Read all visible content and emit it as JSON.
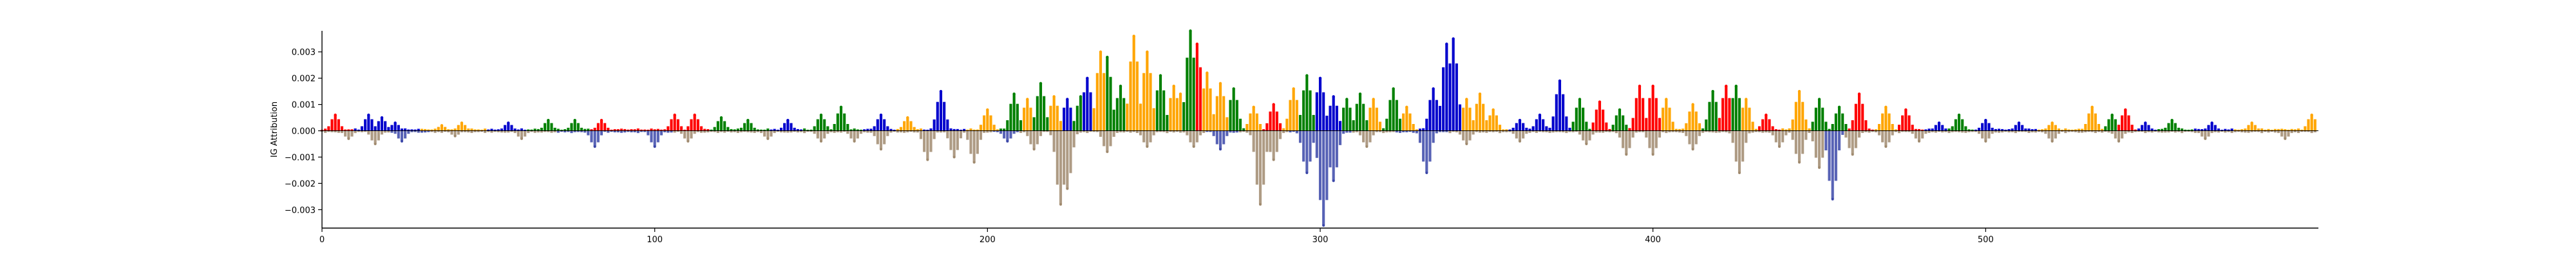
{
  "chart_data": {
    "type": "bar",
    "xlabel": "",
    "ylabel": "IG Attribution",
    "xlim": [
      0,
      600
    ],
    "ylim": [
      -0.0037,
      0.0038
    ],
    "x_ticks": [
      0,
      100,
      200,
      300,
      400,
      500
    ],
    "x_tick_labels": [
      "0",
      "100",
      "200",
      "300",
      "400",
      "500"
    ],
    "y_ticks": [
      0.003,
      0.002,
      0.001,
      0.0,
      -0.001,
      -0.002,
      -0.003
    ],
    "y_tick_labels": [
      "0.003",
      "0.002",
      "0.001",
      "0.000",
      "−0.001",
      "−0.002",
      "−0.003"
    ],
    "grid": false,
    "nucleotide_colors": {
      "A": "#008000",
      "C": "#0000cc",
      "G": "#ffa500",
      "T": "#ff0000"
    },
    "negative_bar_color": "#a08a6e",
    "positive_peaks": [
      {
        "x": 4,
        "y": 0.0006,
        "base": "T"
      },
      {
        "x": 14,
        "y": 0.0006,
        "base": "C"
      },
      {
        "x": 18,
        "y": 0.0005,
        "base": "C"
      },
      {
        "x": 22,
        "y": 0.0003,
        "base": "C"
      },
      {
        "x": 36,
        "y": 0.0002,
        "base": "G"
      },
      {
        "x": 42,
        "y": 0.0003,
        "base": "G"
      },
      {
        "x": 56,
        "y": 0.0003,
        "base": "C"
      },
      {
        "x": 68,
        "y": 0.0004,
        "base": "A"
      },
      {
        "x": 76,
        "y": 0.0004,
        "base": "A"
      },
      {
        "x": 84,
        "y": 0.0004,
        "base": "T"
      },
      {
        "x": 106,
        "y": 0.0006,
        "base": "T"
      },
      {
        "x": 112,
        "y": 0.0006,
        "base": "T"
      },
      {
        "x": 120,
        "y": 0.0005,
        "base": "A"
      },
      {
        "x": 128,
        "y": 0.0004,
        "base": "A"
      },
      {
        "x": 140,
        "y": 0.0004,
        "base": "C"
      },
      {
        "x": 150,
        "y": 0.0006,
        "base": "A"
      },
      {
        "x": 156,
        "y": 0.0009,
        "base": "A"
      },
      {
        "x": 168,
        "y": 0.0006,
        "base": "C"
      },
      {
        "x": 176,
        "y": 0.0005,
        "base": "G"
      },
      {
        "x": 186,
        "y": 0.0015,
        "base": "C"
      },
      {
        "x": 200,
        "y": 0.0008,
        "base": "G"
      },
      {
        "x": 208,
        "y": 0.0014,
        "base": "A"
      },
      {
        "x": 212,
        "y": 0.0012,
        "base": "G"
      },
      {
        "x": 216,
        "y": 0.0018,
        "base": "A"
      },
      {
        "x": 220,
        "y": 0.0013,
        "base": "G"
      },
      {
        "x": 224,
        "y": 0.0012,
        "base": "C"
      },
      {
        "x": 228,
        "y": 0.0013,
        "base": "A"
      },
      {
        "x": 230,
        "y": 0.002,
        "base": "C"
      },
      {
        "x": 234,
        "y": 0.003,
        "base": "G"
      },
      {
        "x": 236,
        "y": 0.0028,
        "base": "A"
      },
      {
        "x": 240,
        "y": 0.0017,
        "base": "A"
      },
      {
        "x": 244,
        "y": 0.0036,
        "base": "G"
      },
      {
        "x": 248,
        "y": 0.003,
        "base": "G"
      },
      {
        "x": 252,
        "y": 0.0021,
        "base": "A"
      },
      {
        "x": 256,
        "y": 0.0017,
        "base": "G"
      },
      {
        "x": 258,
        "y": 0.0014,
        "base": "G"
      },
      {
        "x": 261,
        "y": 0.0038,
        "base": "A"
      },
      {
        "x": 263,
        "y": 0.0033,
        "base": "T"
      },
      {
        "x": 266,
        "y": 0.0022,
        "base": "G"
      },
      {
        "x": 270,
        "y": 0.0018,
        "base": "G"
      },
      {
        "x": 274,
        "y": 0.0016,
        "base": "A"
      },
      {
        "x": 280,
        "y": 0.0009,
        "base": "G"
      },
      {
        "x": 286,
        "y": 0.001,
        "base": "T"
      },
      {
        "x": 292,
        "y": 0.0016,
        "base": "G"
      },
      {
        "x": 296,
        "y": 0.0021,
        "base": "A"
      },
      {
        "x": 300,
        "y": 0.002,
        "base": "C"
      },
      {
        "x": 304,
        "y": 0.0013,
        "base": "C"
      },
      {
        "x": 308,
        "y": 0.0012,
        "base": "A"
      },
      {
        "x": 312,
        "y": 0.0014,
        "base": "A"
      },
      {
        "x": 316,
        "y": 0.0012,
        "base": "G"
      },
      {
        "x": 322,
        "y": 0.0016,
        "base": "A"
      },
      {
        "x": 326,
        "y": 0.0009,
        "base": "G"
      },
      {
        "x": 334,
        "y": 0.0016,
        "base": "C"
      },
      {
        "x": 338,
        "y": 0.0033,
        "base": "C"
      },
      {
        "x": 340,
        "y": 0.0035,
        "base": "C"
      },
      {
        "x": 344,
        "y": 0.0012,
        "base": "G"
      },
      {
        "x": 348,
        "y": 0.0014,
        "base": "G"
      },
      {
        "x": 352,
        "y": 0.0008,
        "base": "G"
      },
      {
        "x": 360,
        "y": 0.0004,
        "base": "C"
      },
      {
        "x": 366,
        "y": 0.0006,
        "base": "C"
      },
      {
        "x": 372,
        "y": 0.0019,
        "base": "C"
      },
      {
        "x": 378,
        "y": 0.0012,
        "base": "A"
      },
      {
        "x": 384,
        "y": 0.0011,
        "base": "T"
      },
      {
        "x": 390,
        "y": 0.0008,
        "base": "A"
      },
      {
        "x": 396,
        "y": 0.0017,
        "base": "T"
      },
      {
        "x": 400,
        "y": 0.0017,
        "base": "T"
      },
      {
        "x": 404,
        "y": 0.0012,
        "base": "G"
      },
      {
        "x": 412,
        "y": 0.001,
        "base": "G"
      },
      {
        "x": 418,
        "y": 0.0015,
        "base": "A"
      },
      {
        "x": 422,
        "y": 0.0017,
        "base": "T"
      },
      {
        "x": 425,
        "y": 0.0017,
        "base": "A"
      },
      {
        "x": 428,
        "y": 0.0012,
        "base": "G"
      },
      {
        "x": 434,
        "y": 0.0006,
        "base": "T"
      },
      {
        "x": 444,
        "y": 0.0015,
        "base": "G"
      },
      {
        "x": 450,
        "y": 0.0012,
        "base": "A"
      },
      {
        "x": 456,
        "y": 0.0009,
        "base": "A"
      },
      {
        "x": 462,
        "y": 0.0014,
        "base": "T"
      },
      {
        "x": 470,
        "y": 0.0009,
        "base": "G"
      },
      {
        "x": 476,
        "y": 0.0008,
        "base": "T"
      },
      {
        "x": 486,
        "y": 0.0003,
        "base": "C"
      },
      {
        "x": 492,
        "y": 0.0006,
        "base": "A"
      },
      {
        "x": 500,
        "y": 0.0004,
        "base": "C"
      },
      {
        "x": 510,
        "y": 0.0003,
        "base": "C"
      },
      {
        "x": 520,
        "y": 0.0003,
        "base": "G"
      },
      {
        "x": 532,
        "y": 0.0009,
        "base": "G"
      },
      {
        "x": 538,
        "y": 0.0006,
        "base": "A"
      },
      {
        "x": 542,
        "y": 0.0008,
        "base": "T"
      },
      {
        "x": 548,
        "y": 0.0003,
        "base": "C"
      },
      {
        "x": 556,
        "y": 0.0004,
        "base": "A"
      },
      {
        "x": 568,
        "y": 0.0003,
        "base": "C"
      },
      {
        "x": 580,
        "y": 0.0003,
        "base": "G"
      },
      {
        "x": 598,
        "y": 0.0006,
        "base": "G"
      }
    ],
    "negative_peaks": [
      {
        "x": 8,
        "y": -0.0003,
        "base": "G"
      },
      {
        "x": 16,
        "y": -0.0005,
        "base": "G"
      },
      {
        "x": 24,
        "y": -0.0004,
        "base": "C"
      },
      {
        "x": 40,
        "y": -0.0002,
        "base": "G"
      },
      {
        "x": 60,
        "y": -0.0003,
        "base": "G"
      },
      {
        "x": 82,
        "y": -0.0006,
        "base": "C"
      },
      {
        "x": 100,
        "y": -0.0006,
        "base": "C"
      },
      {
        "x": 110,
        "y": -0.0004,
        "base": "G"
      },
      {
        "x": 134,
        "y": -0.0003,
        "base": "G"
      },
      {
        "x": 150,
        "y": -0.0004,
        "base": "G"
      },
      {
        "x": 160,
        "y": -0.0004,
        "base": "G"
      },
      {
        "x": 168,
        "y": -0.0007,
        "base": "G"
      },
      {
        "x": 182,
        "y": -0.0011,
        "base": "G"
      },
      {
        "x": 190,
        "y": -0.001,
        "base": "G"
      },
      {
        "x": 196,
        "y": -0.0012,
        "base": "G"
      },
      {
        "x": 206,
        "y": -0.0004,
        "base": "C"
      },
      {
        "x": 214,
        "y": -0.0007,
        "base": "G"
      },
      {
        "x": 222,
        "y": -0.0028,
        "base": "G"
      },
      {
        "x": 224,
        "y": -0.0022,
        "base": "G"
      },
      {
        "x": 236,
        "y": -0.0008,
        "base": "G"
      },
      {
        "x": 248,
        "y": -0.0006,
        "base": "G"
      },
      {
        "x": 262,
        "y": -0.0006,
        "base": "G"
      },
      {
        "x": 270,
        "y": -0.0007,
        "base": "C"
      },
      {
        "x": 282,
        "y": -0.0028,
        "base": "G"
      },
      {
        "x": 286,
        "y": -0.0011,
        "base": "G"
      },
      {
        "x": 296,
        "y": -0.0016,
        "base": "C"
      },
      {
        "x": 301,
        "y": -0.0036,
        "base": "C"
      },
      {
        "x": 304,
        "y": -0.0019,
        "base": "C"
      },
      {
        "x": 314,
        "y": -0.0006,
        "base": "G"
      },
      {
        "x": 332,
        "y": -0.0016,
        "base": "C"
      },
      {
        "x": 344,
        "y": -0.0005,
        "base": "G"
      },
      {
        "x": 360,
        "y": -0.0004,
        "base": "G"
      },
      {
        "x": 380,
        "y": -0.0005,
        "base": "G"
      },
      {
        "x": 392,
        "y": -0.0009,
        "base": "G"
      },
      {
        "x": 400,
        "y": -0.0009,
        "base": "G"
      },
      {
        "x": 412,
        "y": -0.0007,
        "base": "G"
      },
      {
        "x": 426,
        "y": -0.0016,
        "base": "G"
      },
      {
        "x": 438,
        "y": -0.0006,
        "base": "G"
      },
      {
        "x": 444,
        "y": -0.0012,
        "base": "G"
      },
      {
        "x": 450,
        "y": -0.0014,
        "base": "G"
      },
      {
        "x": 454,
        "y": -0.0026,
        "base": "C"
      },
      {
        "x": 460,
        "y": -0.0009,
        "base": "G"
      },
      {
        "x": 470,
        "y": -0.0006,
        "base": "G"
      },
      {
        "x": 480,
        "y": -0.0004,
        "base": "G"
      },
      {
        "x": 500,
        "y": -0.0004,
        "base": "G"
      },
      {
        "x": 520,
        "y": -0.0004,
        "base": "G"
      },
      {
        "x": 540,
        "y": -0.0004,
        "base": "G"
      },
      {
        "x": 566,
        "y": -0.0003,
        "base": "G"
      },
      {
        "x": 590,
        "y": -0.0003,
        "base": "G"
      }
    ]
  }
}
